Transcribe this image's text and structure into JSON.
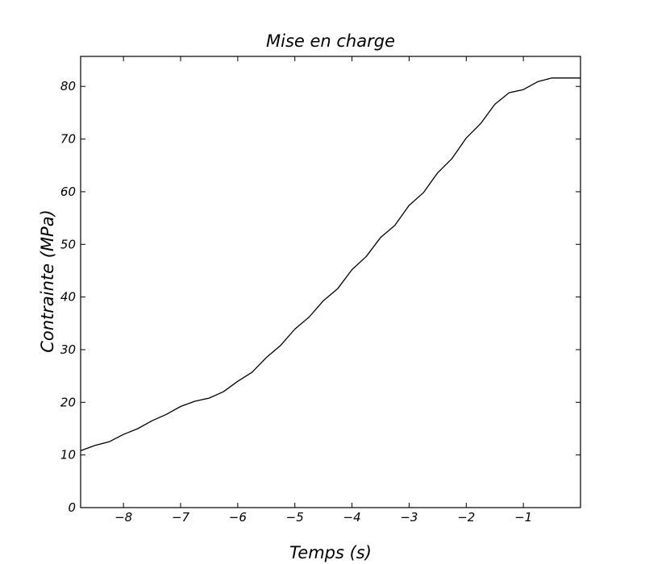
{
  "chart_data": {
    "type": "line",
    "title": "Mise en charge",
    "xlabel": "Temps (s)",
    "ylabel": "Contrainte (MPa)",
    "xlim": [
      -8.75,
      0
    ],
    "ylim": [
      0,
      85.7
    ],
    "grid": false,
    "legend": "none",
    "line_color": "#000000",
    "x_ticks": [
      {
        "value": -8,
        "label": "−8"
      },
      {
        "value": -7,
        "label": "−7"
      },
      {
        "value": -6,
        "label": "−6"
      },
      {
        "value": -5,
        "label": "−5"
      },
      {
        "value": -4,
        "label": "−4"
      },
      {
        "value": -3,
        "label": "−3"
      },
      {
        "value": -2,
        "label": "−2"
      },
      {
        "value": -1,
        "label": "−1"
      }
    ],
    "y_ticks": [
      {
        "value": 0,
        "label": "0"
      },
      {
        "value": 10,
        "label": "10"
      },
      {
        "value": 20,
        "label": "20"
      },
      {
        "value": 30,
        "label": "30"
      },
      {
        "value": 40,
        "label": "40"
      },
      {
        "value": 50,
        "label": "50"
      },
      {
        "value": 60,
        "label": "60"
      },
      {
        "value": 70,
        "label": "70"
      },
      {
        "value": 80,
        "label": "80"
      }
    ],
    "series": [
      {
        "x": [
          -8.75,
          -8.5,
          -8.25,
          -8.0,
          -7.75,
          -7.5,
          -7.25,
          -7.0,
          -6.75,
          -6.5,
          -6.25,
          -6.0,
          -5.75,
          -5.5,
          -5.25,
          -5.0,
          -4.75,
          -4.5,
          -4.25,
          -4.0,
          -3.75,
          -3.5,
          -3.25,
          -3.0,
          -2.75,
          -2.5,
          -2.25,
          -2.0,
          -1.75,
          -1.5,
          -1.25,
          -1.0,
          -0.75,
          -0.5,
          -0.25,
          0.0
        ],
        "y": [
          10.8,
          11.8,
          12.5,
          13.9,
          15.0,
          16.5,
          17.7,
          19.2,
          20.2,
          20.8,
          22.0,
          24.0,
          25.7,
          28.5,
          30.8,
          33.9,
          36.2,
          39.3,
          41.6,
          45.2,
          47.7,
          51.3,
          53.6,
          57.4,
          59.8,
          63.6,
          66.3,
          70.2,
          72.9,
          76.6,
          78.8,
          79.4,
          80.9,
          81.6,
          81.6,
          81.6
        ]
      }
    ]
  }
}
